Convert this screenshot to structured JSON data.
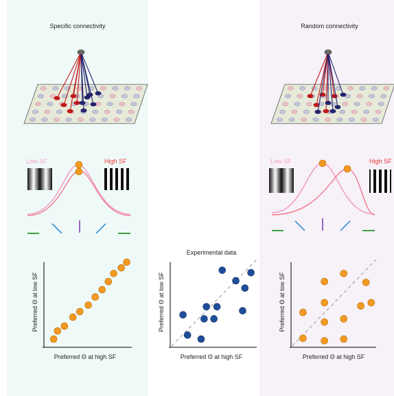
{
  "specific": {
    "title": "Specific connectivity",
    "low_sf_label": "Low SF",
    "high_sf_label": "High SF",
    "xlabel": "Preferred Θ at high SF",
    "ylabel": "Preferred Θ at low SF"
  },
  "experimental": {
    "title": "Experimental data",
    "xlabel": "Preferred Θ at high SF",
    "ylabel": "Preferred Θ at low SF"
  },
  "random": {
    "title": "Random connectivity",
    "low_sf_label": "Low SF",
    "high_sf_label": "High SF",
    "xlabel": "Preferred Θ at high SF",
    "ylabel": "Preferred Θ at low SF"
  },
  "colors": {
    "orange": "#f39a23",
    "blue_dots": "#1f4e9c",
    "low_sf": "#f2a1c6",
    "high_sf": "#e23a3a",
    "tuning_curve": "#f08aa0",
    "cell_pink": "#e9a3b7",
    "cell_blue": "#a9abd8",
    "sheet": "#e7ead9"
  },
  "chart_data": [
    {
      "type": "scatter",
      "title": "Specific connectivity",
      "xlabel": "Preferred Θ at high SF",
      "ylabel": "Preferred Θ at low SF",
      "xlim": [
        0,
        10
      ],
      "ylim": [
        0,
        10
      ],
      "points": [
        [
          0.2,
          0.5
        ],
        [
          0.7,
          1.5
        ],
        [
          1.6,
          2.1
        ],
        [
          2.7,
          3.2
        ],
        [
          3.6,
          3.9
        ],
        [
          4.7,
          4.7
        ],
        [
          5.6,
          5.7
        ],
        [
          6.5,
          6.6
        ],
        [
          7.3,
          7.6
        ],
        [
          8.0,
          8.6
        ],
        [
          9.0,
          9.3
        ],
        [
          9.7,
          10.0
        ]
      ]
    },
    {
      "type": "scatter",
      "title": "Experimental data",
      "xlabel": "Preferred Θ at high SF",
      "ylabel": "Preferred Θ at low SF",
      "xlim": [
        0,
        10
      ],
      "ylim": [
        0,
        10
      ],
      "points": [
        [
          0.6,
          3.5
        ],
        [
          1.2,
          1.0
        ],
        [
          3.0,
          0.5
        ],
        [
          3.4,
          3.0
        ],
        [
          3.7,
          4.5
        ],
        [
          4.7,
          3.0
        ],
        [
          5.1,
          4.5
        ],
        [
          5.8,
          9.0
        ],
        [
          7.6,
          7.7
        ],
        [
          8.5,
          4.0
        ],
        [
          8.8,
          6.8
        ],
        [
          9.6,
          8.7
        ]
      ]
    },
    {
      "type": "scatter",
      "title": "Random connectivity",
      "xlabel": "Preferred Θ at high SF",
      "ylabel": "Preferred Θ at low SF",
      "xlim": [
        0,
        10
      ],
      "ylim": [
        0,
        10
      ],
      "points": [
        [
          0.5,
          0.6
        ],
        [
          0.5,
          3.8
        ],
        [
          3.4,
          0.3
        ],
        [
          3.4,
          2.6
        ],
        [
          3.4,
          5.0
        ],
        [
          3.4,
          7.6
        ],
        [
          6.0,
          0.5
        ],
        [
          6.0,
          3.0
        ],
        [
          6.0,
          8.6
        ],
        [
          8.3,
          4.6
        ],
        [
          9.0,
          7.5
        ],
        [
          9.7,
          5.0
        ]
      ]
    }
  ]
}
